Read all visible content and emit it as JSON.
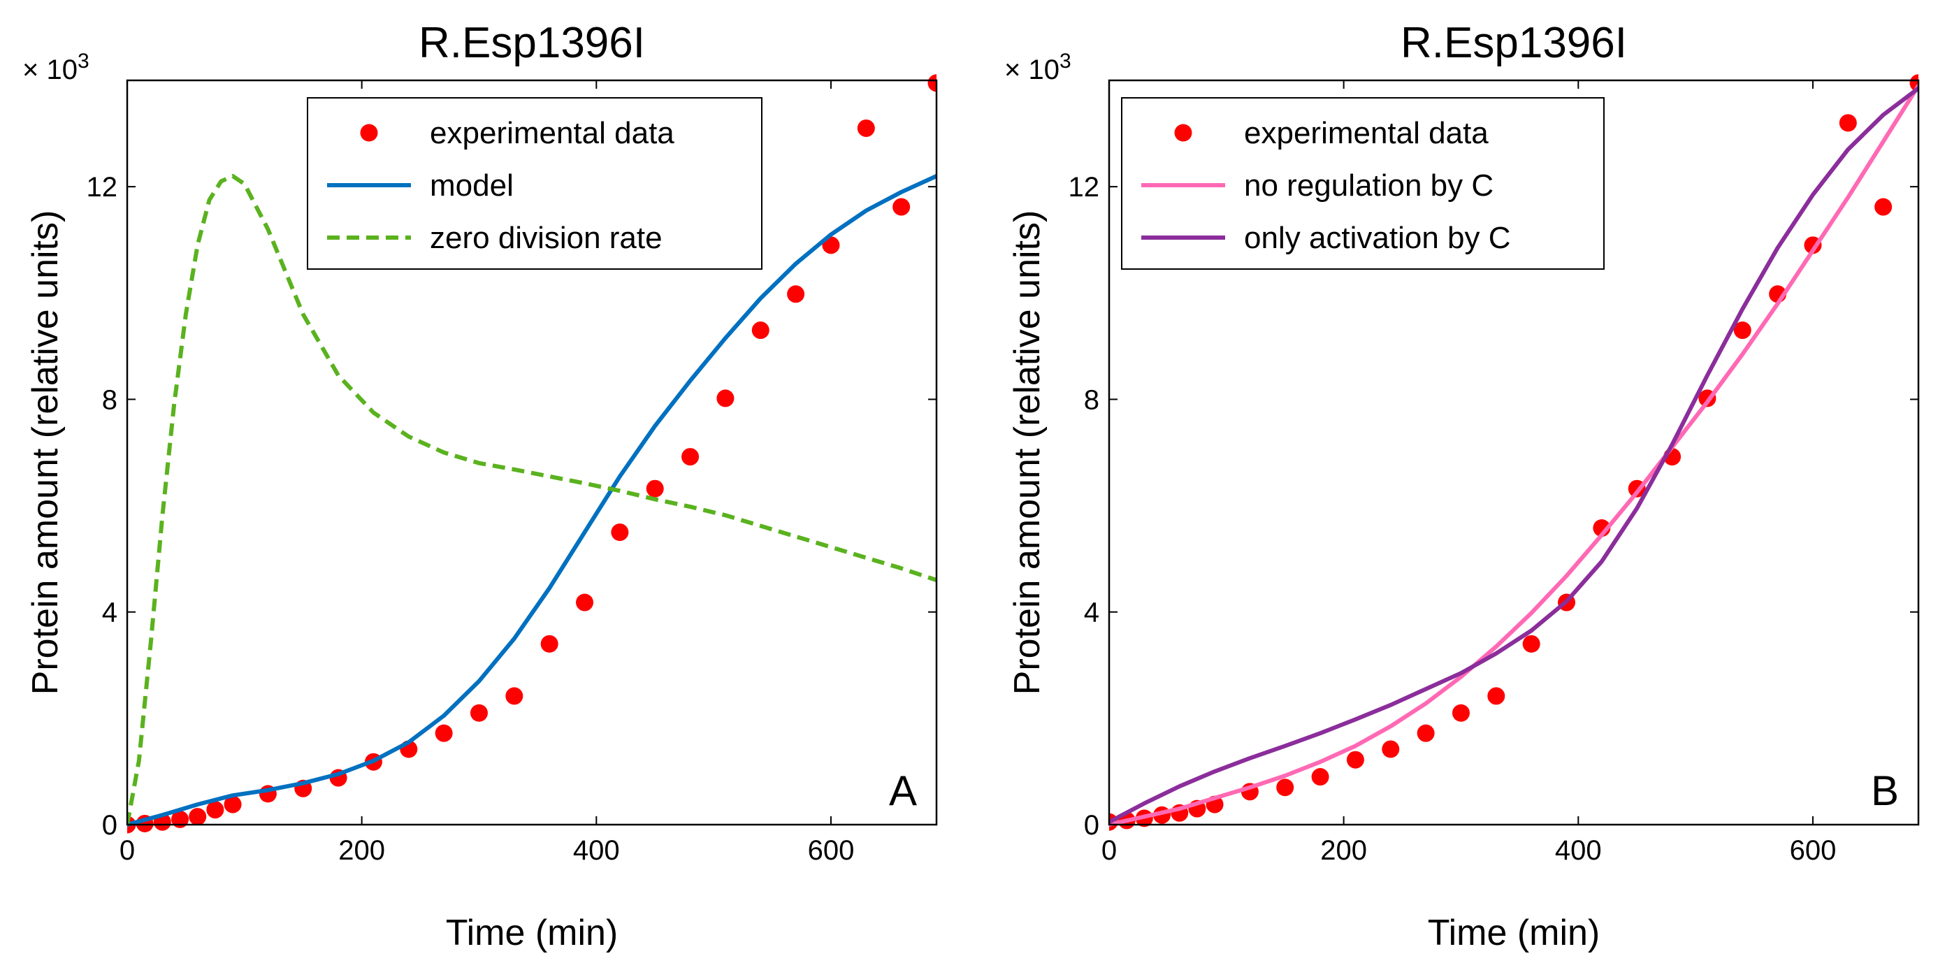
{
  "chart_data": [
    {
      "type": "line",
      "title": "R.Esp1396I",
      "panel_label": "A",
      "xlabel": "Time (min)",
      "ylabel": "Protein amount (relative units)",
      "y_multiplier": {
        "base": "× 10",
        "exp": "3"
      },
      "xlim": [
        0,
        690
      ],
      "ylim": [
        0,
        14
      ],
      "xticks": [
        0,
        200,
        400,
        600
      ],
      "xtick_labels": [
        "0",
        "200",
        "400",
        "600"
      ],
      "yticks": [
        0,
        4,
        8,
        12
      ],
      "ytick_labels": [
        "0",
        "4",
        "8",
        "12"
      ],
      "legend_position": "top-right",
      "series": [
        {
          "name": "experimental data",
          "kind": "scatter",
          "color": "#ff0000",
          "x": [
            0,
            15,
            30,
            45,
            60,
            75,
            90,
            120,
            150,
            180,
            210,
            240,
            270,
            300,
            330,
            360,
            390,
            420,
            450,
            480,
            510,
            540,
            570,
            600,
            630,
            660,
            690
          ],
          "y": [
            0.0,
            0.02,
            0.05,
            0.1,
            0.15,
            0.28,
            0.38,
            0.58,
            0.68,
            0.88,
            1.18,
            1.42,
            1.72,
            2.1,
            2.42,
            3.4,
            4.18,
            5.5,
            6.32,
            6.92,
            8.02,
            9.3,
            9.98,
            10.9,
            13.1,
            11.62,
            13.95
          ]
        },
        {
          "name": "model",
          "kind": "line",
          "color": "#0070c0",
          "dash": "none",
          "x": [
            0,
            30,
            60,
            90,
            120,
            150,
            180,
            210,
            240,
            270,
            300,
            330,
            360,
            390,
            420,
            450,
            480,
            510,
            540,
            570,
            600,
            630,
            660,
            690
          ],
          "y": [
            0.0,
            0.18,
            0.38,
            0.55,
            0.65,
            0.78,
            0.95,
            1.2,
            1.55,
            2.05,
            2.7,
            3.5,
            4.45,
            5.5,
            6.55,
            7.5,
            8.35,
            9.15,
            9.9,
            10.55,
            11.1,
            11.55,
            11.9,
            12.2
          ]
        },
        {
          "name": "zero division rate",
          "kind": "line",
          "color": "#5ab21e",
          "dash": "18,10",
          "x": [
            0,
            10,
            20,
            30,
            40,
            50,
            60,
            70,
            80,
            90,
            100,
            120,
            150,
            180,
            210,
            240,
            270,
            300,
            330,
            360,
            390,
            420,
            450,
            480,
            510,
            540,
            570,
            600,
            630,
            660,
            690
          ],
          "y": [
            0.0,
            1.2,
            3.4,
            5.8,
            7.9,
            9.6,
            10.9,
            11.75,
            12.1,
            12.2,
            12.05,
            11.2,
            9.6,
            8.45,
            7.75,
            7.3,
            7.0,
            6.8,
            6.68,
            6.55,
            6.42,
            6.28,
            6.12,
            5.98,
            5.82,
            5.62,
            5.42,
            5.22,
            5.02,
            4.82,
            4.6
          ]
        }
      ]
    },
    {
      "type": "line",
      "title": "R.Esp1396I",
      "panel_label": "B",
      "xlabel": "Time (min)",
      "ylabel": "Protein amount (relative units)",
      "y_multiplier": {
        "base": "× 10",
        "exp": "3"
      },
      "xlim": [
        0,
        690
      ],
      "ylim": [
        0,
        14
      ],
      "xticks": [
        0,
        200,
        400,
        600
      ],
      "xtick_labels": [
        "0",
        "200",
        "400",
        "600"
      ],
      "yticks": [
        0,
        4,
        8,
        12
      ],
      "ytick_labels": [
        "0",
        "4",
        "8",
        "12"
      ],
      "legend_position": "top-left",
      "series": [
        {
          "name": "experimental data",
          "kind": "scatter",
          "color": "#ff0000",
          "x": [
            0,
            15,
            30,
            45,
            60,
            75,
            90,
            120,
            150,
            180,
            210,
            240,
            270,
            300,
            330,
            360,
            390,
            420,
            450,
            480,
            510,
            540,
            570,
            600,
            630,
            660,
            690
          ],
          "y": [
            0.05,
            0.08,
            0.12,
            0.18,
            0.22,
            0.3,
            0.38,
            0.62,
            0.7,
            0.9,
            1.22,
            1.42,
            1.72,
            2.1,
            2.42,
            3.4,
            4.18,
            5.58,
            6.32,
            6.92,
            8.02,
            9.3,
            9.98,
            10.9,
            13.2,
            11.62,
            13.95
          ]
        },
        {
          "name": "no regulation by C",
          "kind": "line",
          "color": "#ff69b4",
          "dash": "none",
          "x": [
            0,
            30,
            60,
            90,
            120,
            150,
            180,
            210,
            240,
            270,
            300,
            330,
            360,
            390,
            420,
            450,
            480,
            510,
            540,
            570,
            600,
            630,
            660,
            690
          ],
          "y": [
            0.0,
            0.15,
            0.3,
            0.5,
            0.7,
            0.92,
            1.18,
            1.48,
            1.85,
            2.28,
            2.78,
            3.35,
            3.98,
            4.68,
            5.45,
            6.25,
            7.1,
            7.95,
            8.85,
            9.8,
            10.8,
            11.8,
            12.85,
            13.9
          ]
        },
        {
          "name": "only activation by C",
          "kind": "line",
          "color": "#8b2d9b",
          "dash": "none",
          "x": [
            0,
            30,
            60,
            90,
            120,
            150,
            180,
            210,
            240,
            270,
            300,
            330,
            360,
            390,
            420,
            450,
            480,
            510,
            540,
            570,
            600,
            630,
            660,
            690
          ],
          "y": [
            0.05,
            0.4,
            0.72,
            1.0,
            1.25,
            1.48,
            1.72,
            1.98,
            2.25,
            2.55,
            2.85,
            3.22,
            3.65,
            4.2,
            4.95,
            5.95,
            7.15,
            8.45,
            9.7,
            10.85,
            11.85,
            12.7,
            13.35,
            13.85
          ]
        }
      ]
    }
  ]
}
